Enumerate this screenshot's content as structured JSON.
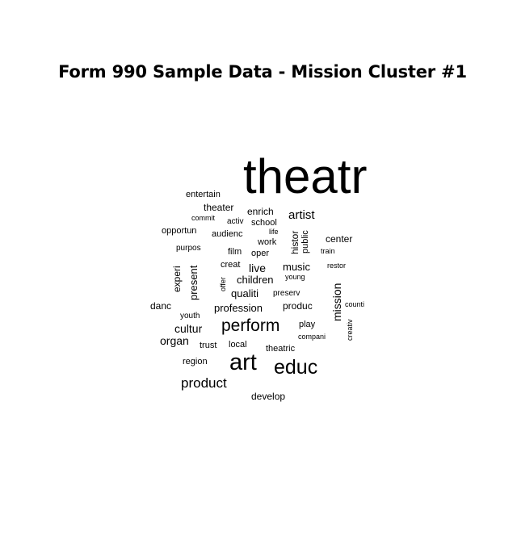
{
  "chart_data": {
    "type": "wordcloud",
    "title": "Form 990 Sample Data - Mission Cluster #1",
    "words": [
      {
        "text": "theatr",
        "weight": 100
      },
      {
        "text": "art",
        "weight": 45
      },
      {
        "text": "educ",
        "weight": 40
      },
      {
        "text": "perform",
        "weight": 33
      },
      {
        "text": "product",
        "weight": 27
      },
      {
        "text": "artist",
        "weight": 23
      },
      {
        "text": "cultur",
        "weight": 21
      },
      {
        "text": "music",
        "weight": 20
      },
      {
        "text": "profession",
        "weight": 20
      },
      {
        "text": "live",
        "weight": 20
      },
      {
        "text": "qualiti",
        "weight": 19
      },
      {
        "text": "organ",
        "weight": 19
      },
      {
        "text": "children",
        "weight": 19
      },
      {
        "text": "mission",
        "weight": 19
      },
      {
        "text": "develop",
        "weight": 18
      },
      {
        "text": "theater",
        "weight": 18
      },
      {
        "text": "enrich",
        "weight": 18
      },
      {
        "text": "danc",
        "weight": 18
      },
      {
        "text": "center",
        "weight": 18
      },
      {
        "text": "produc",
        "weight": 18
      },
      {
        "text": "present",
        "weight": 18
      },
      {
        "text": "histor",
        "weight": 17
      },
      {
        "text": "experi",
        "weight": 17
      },
      {
        "text": "theatric",
        "weight": 16
      },
      {
        "text": "play",
        "weight": 16
      },
      {
        "text": "audienc",
        "weight": 16
      },
      {
        "text": "entertain",
        "weight": 16
      },
      {
        "text": "public",
        "weight": 16
      },
      {
        "text": "trust",
        "weight": 16
      },
      {
        "text": "local",
        "weight": 16
      },
      {
        "text": "school",
        "weight": 16
      },
      {
        "text": "work",
        "weight": 16
      },
      {
        "text": "opportun",
        "weight": 15
      },
      {
        "text": "film",
        "weight": 15
      },
      {
        "text": "creat",
        "weight": 15
      },
      {
        "text": "oper",
        "weight": 15
      },
      {
        "text": "preserv",
        "weight": 15
      },
      {
        "text": "region",
        "weight": 15
      },
      {
        "text": "activ",
        "weight": 15
      },
      {
        "text": "purpos",
        "weight": 15
      },
      {
        "text": "youth",
        "weight": 15
      },
      {
        "text": "restor",
        "weight": 14
      },
      {
        "text": "commit",
        "weight": 14
      },
      {
        "text": "life",
        "weight": 14
      },
      {
        "text": "train",
        "weight": 14
      },
      {
        "text": "young",
        "weight": 14
      },
      {
        "text": "offer",
        "weight": 14
      },
      {
        "text": "counti",
        "weight": 14
      },
      {
        "text": "compani",
        "weight": 14
      },
      {
        "text": "creativ",
        "weight": 14
      }
    ]
  }
}
